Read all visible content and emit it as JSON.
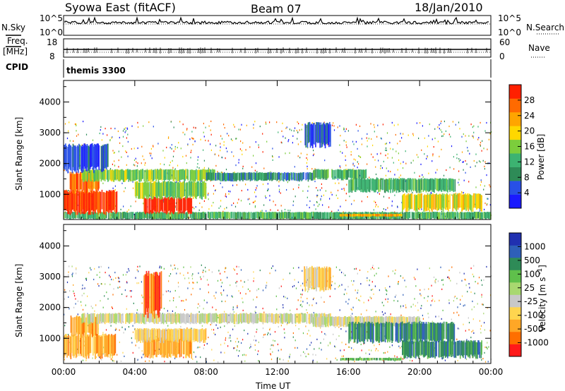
{
  "header": {
    "station": "Syowa East (fitACF)",
    "beam": "Beam 07",
    "date": "18/Jan/2010"
  },
  "panel_labels": {
    "nsky": "N.Sky",
    "freq_top": "Freq.",
    "freq_unit": "[MHz]",
    "cpid": "CPID",
    "nsearch": "N.Search",
    "nave": "Nave",
    "cpid_value": "themis 3300"
  },
  "small_axes": {
    "nsky_top": "10^5",
    "nsky_bottom": "10^0",
    "nsearch_top": "10^5",
    "nsearch_bottom": "10^0",
    "freq_top": "18",
    "freq_bottom": "8",
    "nave_top": "60",
    "nave_bottom": "0"
  },
  "colors": {
    "power_scale": [
      "#1a1aff",
      "#2850e6",
      "#2e8b57",
      "#3cb371",
      "#7ccd3c",
      "#ffd700",
      "#ffa500",
      "#ff6a00",
      "#ff2000"
    ],
    "velocity_scale": [
      "#2030b0",
      "#2e5fb8",
      "#2e8b57",
      "#5fc04b",
      "#a8d870",
      "#c8c8c8",
      "#ffd54f",
      "#ffa726",
      "#ff6f00",
      "#ff1a1a"
    ]
  },
  "chart_data": [
    {
      "type": "heatmap",
      "title": "Power",
      "xlabel": "",
      "ylabel": "Slant Range [km]",
      "x_ticks": [
        "00:00",
        "04:00",
        "08:00",
        "12:00",
        "16:00",
        "20:00",
        "00:00"
      ],
      "y_ticks": [
        "1000",
        "2000",
        "3000",
        "4000"
      ],
      "xlim": [
        0,
        24
      ],
      "ylim": [
        180,
        4700
      ],
      "colorbar": {
        "label": "Power [dB]",
        "ticks": [
          "4",
          "8",
          "12",
          "16",
          "20",
          "24",
          "28"
        ],
        "range": [
          0,
          30
        ]
      },
      "bands": [
        {
          "t0": 0.0,
          "t1": 24.0,
          "r0": 200,
          "r1": 420,
          "level": 3
        },
        {
          "t0": 0.0,
          "t1": 3.0,
          "r0": 420,
          "r1": 1100,
          "level": 8
        },
        {
          "t0": 0.3,
          "t1": 2.0,
          "r0": 1100,
          "r1": 1700,
          "level": 7
        },
        {
          "t0": 4.5,
          "t1": 7.2,
          "r0": 420,
          "r1": 900,
          "level": 8
        },
        {
          "t0": 4.0,
          "t1": 8.0,
          "r0": 900,
          "r1": 1400,
          "level": 4
        },
        {
          "t0": 1.0,
          "t1": 8.5,
          "r0": 1450,
          "r1": 1800,
          "level": 4
        },
        {
          "t0": 8.0,
          "t1": 14.0,
          "r0": 1450,
          "r1": 1700,
          "level": 2
        },
        {
          "t0": 14.0,
          "t1": 17.0,
          "r0": 1500,
          "r1": 1800,
          "level": 3
        },
        {
          "t0": 16.0,
          "t1": 22.0,
          "r0": 1100,
          "r1": 1500,
          "level": 3
        },
        {
          "t0": 19.0,
          "t1": 23.5,
          "r0": 500,
          "r1": 1000,
          "level": 5
        },
        {
          "t0": 13.5,
          "t1": 15.0,
          "r0": 2600,
          "r1": 3300,
          "level": 1
        },
        {
          "t0": 0.0,
          "t1": 2.5,
          "r0": 1800,
          "r1": 2600,
          "level": 1
        },
        {
          "t0": 15.5,
          "t1": 19.0,
          "r0": 280,
          "r1": 360,
          "level": 6
        }
      ]
    },
    {
      "type": "heatmap",
      "title": "Velocity",
      "xlabel": "Time UT",
      "ylabel": "Slant Range [km]",
      "x_ticks": [
        "00:00",
        "04:00",
        "08:00",
        "12:00",
        "16:00",
        "20:00",
        "00:00"
      ],
      "y_ticks": [
        "1000",
        "2000",
        "3000",
        "4000"
      ],
      "xlim": [
        0,
        24
      ],
      "ylim": [
        180,
        4700
      ],
      "colorbar": {
        "label": "Velocity [m s^-1]",
        "ticks": [
          "1000",
          "500",
          "100",
          "25",
          "-25",
          "-100",
          "-500",
          "-1000"
        ],
        "range": [
          -1200,
          1200
        ]
      },
      "bands": [
        {
          "t0": 0.0,
          "t1": 3.0,
          "r0": 420,
          "r1": 1100,
          "level": 7
        },
        {
          "t0": 0.3,
          "t1": 2.0,
          "r0": 1100,
          "r1": 1700,
          "level": 7
        },
        {
          "t0": 4.5,
          "t1": 7.2,
          "r0": 420,
          "r1": 1000,
          "level": 7
        },
        {
          "t0": 4.0,
          "t1": 8.0,
          "r0": 900,
          "r1": 1300,
          "level": 6
        },
        {
          "t0": 1.0,
          "t1": 15.0,
          "r0": 1500,
          "r1": 1800,
          "level": 5
        },
        {
          "t0": 14.0,
          "t1": 20.0,
          "r0": 1400,
          "r1": 1700,
          "level": 5
        },
        {
          "t0": 16.0,
          "t1": 22.0,
          "r0": 900,
          "r1": 1500,
          "level": 2
        },
        {
          "t0": 19.0,
          "t1": 23.5,
          "r0": 400,
          "r1": 900,
          "level": 2
        },
        {
          "t0": 13.5,
          "t1": 15.0,
          "r0": 2600,
          "r1": 3300,
          "level": 6
        },
        {
          "t0": 15.5,
          "t1": 19.0,
          "r0": 280,
          "r1": 360,
          "level": 3
        },
        {
          "t0": 4.5,
          "t1": 5.5,
          "r0": 1800,
          "r1": 3100,
          "level": 8
        }
      ]
    }
  ]
}
